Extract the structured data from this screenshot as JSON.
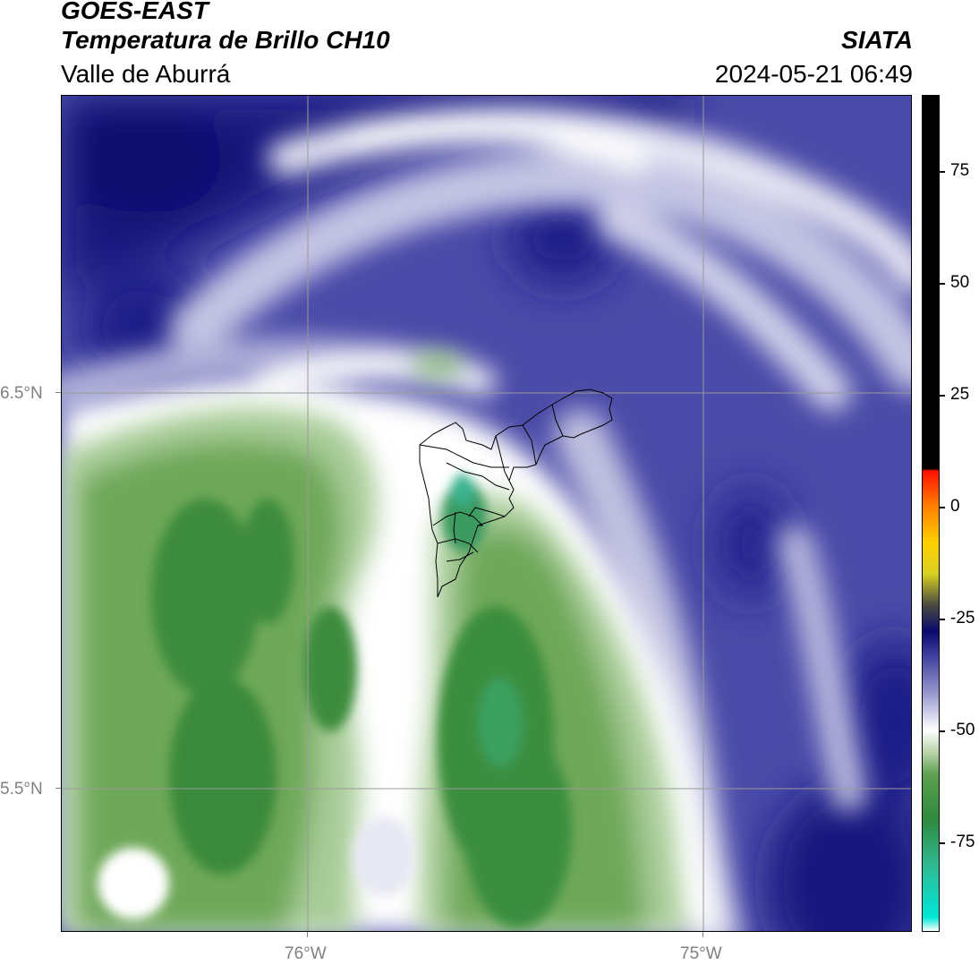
{
  "header": {
    "satellite": "GOES-EAST",
    "product": "Temperatura de Brillo CH10",
    "region": "Valle de Aburrá",
    "organization": "SIATA",
    "timestamp": "2024-05-21 06:49"
  },
  "axes": {
    "lon_ticks": [
      {
        "label": "76°W",
        "value": -76.0
      },
      {
        "label": "75°W",
        "value": -75.0
      }
    ],
    "lat_ticks": [
      {
        "label": "6.5°N",
        "value": 6.5
      },
      {
        "label": "5.5°N",
        "value": 5.5
      }
    ],
    "lon_range": [
      -76.62,
      -74.47
    ],
    "lat_range": [
      5.14,
      7.25
    ],
    "gridlines": true
  },
  "colorbar": {
    "range": [
      -95,
      92
    ],
    "ticks": [
      {
        "label": "75",
        "value": 75
      },
      {
        "label": "50",
        "value": 50
      },
      {
        "label": "25",
        "value": 25
      },
      {
        "label": "0",
        "value": 0
      },
      {
        "label": "-25",
        "value": -25
      },
      {
        "label": "-50",
        "value": -50
      },
      {
        "label": "-75",
        "value": -75
      }
    ],
    "stops": [
      {
        "value": -95,
        "color": "#ffffff"
      },
      {
        "value": -92,
        "color": "#00e8d8"
      },
      {
        "value": -80,
        "color": "#30b890"
      },
      {
        "value": -70,
        "color": "#2e8a3c"
      },
      {
        "value": -60,
        "color": "#5ea050"
      },
      {
        "value": -55,
        "color": "#b8d4a8"
      },
      {
        "value": -50,
        "color": "#ffffff"
      },
      {
        "value": -42,
        "color": "#9a9ad0"
      },
      {
        "value": -33,
        "color": "#3c3c9c"
      },
      {
        "value": -28,
        "color": "#0a0a6e"
      },
      {
        "value": -22,
        "color": "#4a4a40"
      },
      {
        "value": -15,
        "color": "#d8d020"
      },
      {
        "value": -8,
        "color": "#ffd000"
      },
      {
        "value": 0,
        "color": "#ff8000"
      },
      {
        "value": 8,
        "color": "#ff1000"
      },
      {
        "value": 8.5,
        "color": "#000000"
      },
      {
        "value": 92,
        "color": "#000000"
      }
    ]
  },
  "map_colors": {
    "deep_cold": "#0c0c78",
    "cold": "#3c3c9c",
    "mid": "#8888c8",
    "light": "#c8c8e4",
    "white": "#ffffff",
    "pale_green": "#c8dcb8",
    "green": "#6ea858",
    "dark_green": "#3a8e3c",
    "teal": "#3aaa84",
    "boundary": "#000000",
    "grid": "#999999"
  }
}
